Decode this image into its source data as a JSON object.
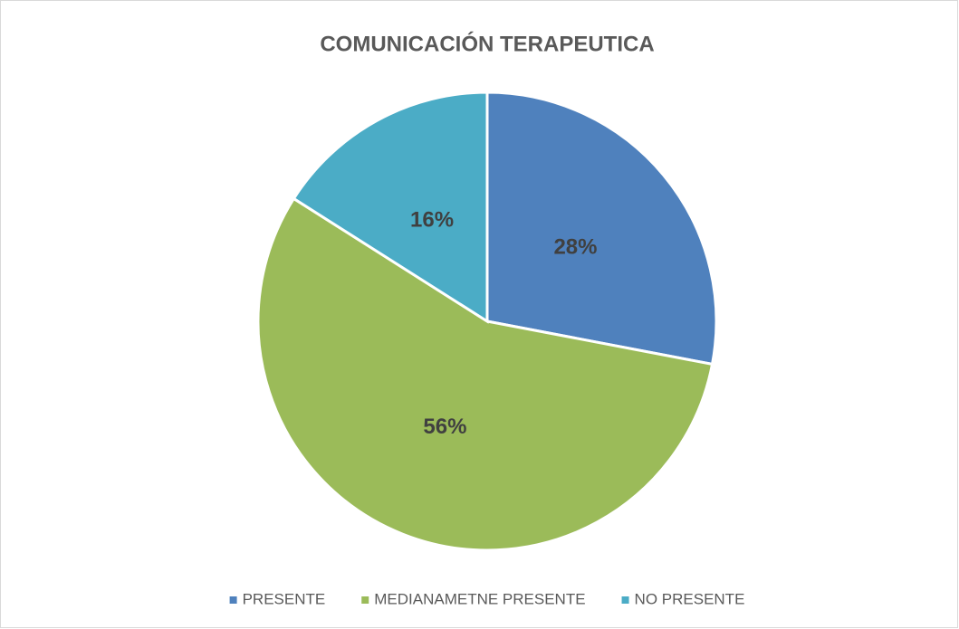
{
  "chart_data": {
    "type": "pie",
    "title": "COMUNICACIÓN TERAPEUTICA",
    "categories": [
      "PRESENTE",
      "MEDIANAMETNE PRESENTE",
      "NO PRESENTE"
    ],
    "values": [
      28,
      56,
      16
    ],
    "value_labels": [
      "28%",
      "56%",
      "16%"
    ],
    "colors": [
      "#4f81bd",
      "#9bbb59",
      "#4bacc6"
    ],
    "legend": "bottom"
  }
}
